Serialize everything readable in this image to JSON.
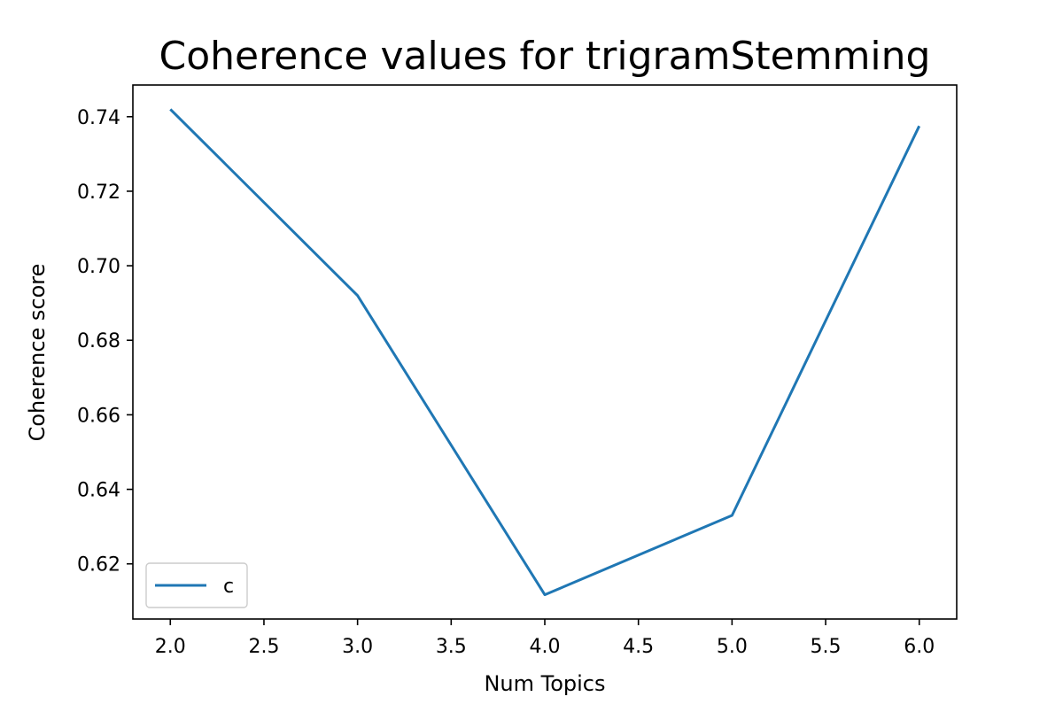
{
  "chart_data": {
    "type": "line",
    "title": "Coherence values for trigramStemming",
    "xlabel": "Num Topics",
    "ylabel": "Coherence score",
    "xlim": [
      1.8,
      6.2
    ],
    "ylim": [
      0.6052,
      0.7485
    ],
    "x_ticks": [
      2.0,
      2.5,
      3.0,
      3.5,
      4.0,
      4.5,
      5.0,
      5.5,
      6.0
    ],
    "x_tick_labels": [
      "2.0",
      "2.5",
      "3.0",
      "3.5",
      "4.0",
      "4.5",
      "5.0",
      "5.5",
      "6.0"
    ],
    "y_ticks": [
      0.62,
      0.64,
      0.66,
      0.68,
      0.7,
      0.72,
      0.74
    ],
    "y_tick_labels": [
      "0.62",
      "0.64",
      "0.66",
      "0.68",
      "0.70",
      "0.72",
      "0.74"
    ],
    "grid": false,
    "legend_position": "lower-left",
    "series": [
      {
        "name": "c",
        "color": "#1f77b4",
        "x": [
          2,
          3,
          4,
          5,
          6
        ],
        "y": [
          0.742,
          0.692,
          0.6117,
          0.633,
          0.7375
        ]
      }
    ]
  }
}
